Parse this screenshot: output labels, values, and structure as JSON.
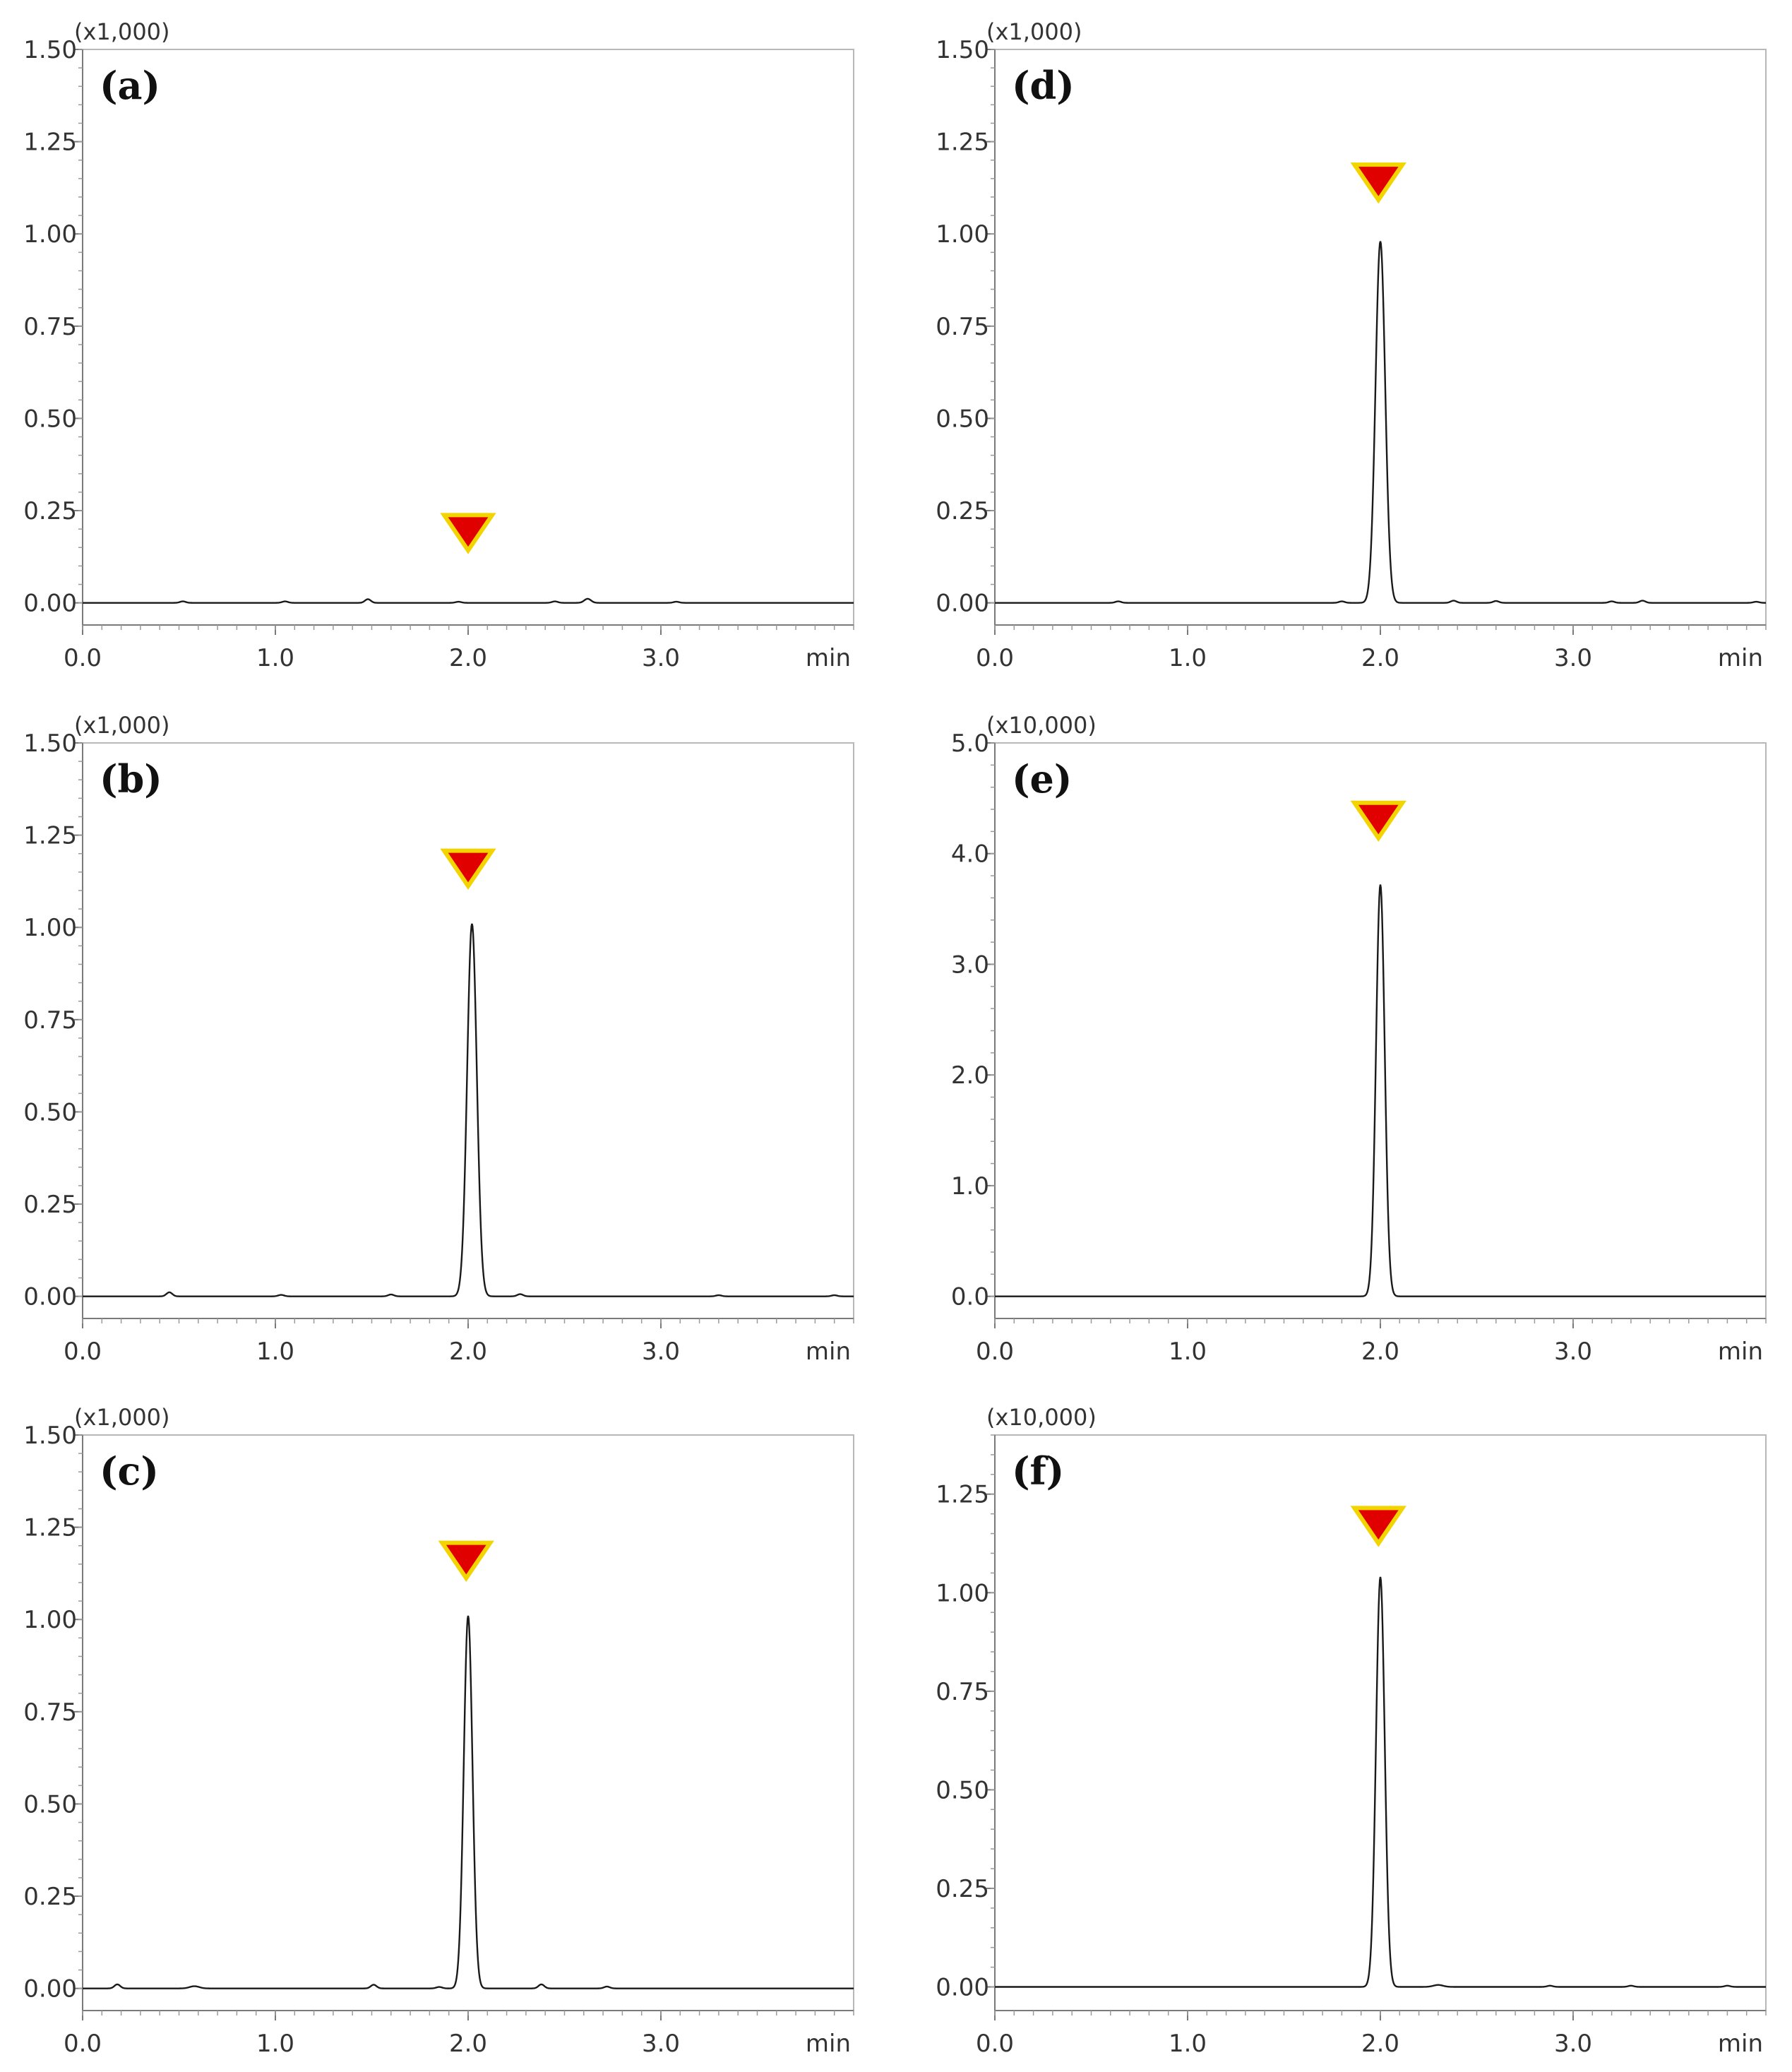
{
  "colors": {
    "trace": "#1a1a1a",
    "frame": "#b8b8b8",
    "marker_fill": "#e00000",
    "marker_border": "#f2d500"
  },
  "chart_data": [
    {
      "type": "line",
      "panel": "(a)",
      "multiplier": "(x1,000)",
      "xlabel": "min",
      "xlim": [
        0.0,
        4.0
      ],
      "xticks": [
        "0.0",
        "1.0",
        "2.0",
        "3.0"
      ],
      "ylim": [
        -0.06,
        1.5
      ],
      "yticks": [
        "0.00",
        "0.25",
        "0.50",
        "0.75",
        "1.00",
        "1.25",
        "1.50"
      ],
      "grid": false,
      "marker": {
        "x": 2.0,
        "y": 0.19
      },
      "series": [
        {
          "peaks": [
            [
              0.52,
              0.004,
              0.03
            ],
            [
              1.05,
              0.004,
              0.03
            ],
            [
              1.48,
              0.01,
              0.03
            ],
            [
              1.95,
              0.003,
              0.03
            ],
            [
              2.45,
              0.004,
              0.03
            ],
            [
              2.62,
              0.011,
              0.035
            ],
            [
              3.08,
              0.003,
              0.03
            ]
          ]
        }
      ]
    },
    {
      "type": "line",
      "panel": "(b)",
      "multiplier": "(x1,000)",
      "xlabel": "min",
      "xlim": [
        0.0,
        4.0
      ],
      "xticks": [
        "0.0",
        "1.0",
        "2.0",
        "3.0"
      ],
      "ylim": [
        -0.06,
        1.5
      ],
      "yticks": [
        "0.00",
        "0.25",
        "0.50",
        "0.75",
        "1.00",
        "1.25",
        "1.50"
      ],
      "grid": false,
      "marker": {
        "x": 2.0,
        "y": 1.16
      },
      "series": [
        {
          "peaks": [
            [
              0.45,
              0.011,
              0.03
            ],
            [
              1.03,
              0.004,
              0.03
            ],
            [
              1.6,
              0.005,
              0.03
            ],
            [
              2.02,
              1.01,
              0.05
            ],
            [
              2.27,
              0.006,
              0.03
            ],
            [
              3.3,
              0.003,
              0.03
            ],
            [
              3.9,
              0.003,
              0.03
            ]
          ]
        }
      ]
    },
    {
      "type": "line",
      "panel": "(c)",
      "multiplier": "(x1,000)",
      "xlabel": "min",
      "xlim": [
        0.0,
        4.0
      ],
      "xticks": [
        "0.0",
        "1.0",
        "2.0",
        "3.0"
      ],
      "ylim": [
        -0.06,
        1.5
      ],
      "yticks": [
        "0.00",
        "0.25",
        "0.50",
        "0.75",
        "1.00",
        "1.25",
        "1.50"
      ],
      "grid": false,
      "marker": {
        "x": 1.99,
        "y": 1.16
      },
      "series": [
        {
          "peaks": [
            [
              0.18,
              0.011,
              0.03
            ],
            [
              0.58,
              0.006,
              0.05
            ],
            [
              1.51,
              0.01,
              0.03
            ],
            [
              1.85,
              0.004,
              0.03
            ],
            [
              2.0,
              1.01,
              0.045
            ],
            [
              2.38,
              0.011,
              0.03
            ],
            [
              2.72,
              0.005,
              0.03
            ]
          ]
        }
      ]
    },
    {
      "type": "line",
      "panel": "(d)",
      "multiplier": "(x1,000)",
      "xlabel": "min",
      "xlim": [
        0.0,
        4.0
      ],
      "xticks": [
        "0.0",
        "1.0",
        "2.0",
        "3.0"
      ],
      "ylim": [
        -0.06,
        1.5
      ],
      "yticks": [
        "0.00",
        "0.25",
        "0.50",
        "0.75",
        "1.00",
        "1.25",
        "1.50"
      ],
      "grid": false,
      "marker": {
        "x": 1.99,
        "y": 1.14
      },
      "series": [
        {
          "peaks": [
            [
              0.64,
              0.004,
              0.03
            ],
            [
              1.8,
              0.004,
              0.03
            ],
            [
              2.0,
              0.98,
              0.05
            ],
            [
              2.38,
              0.006,
              0.03
            ],
            [
              2.6,
              0.005,
              0.03
            ],
            [
              3.2,
              0.004,
              0.03
            ],
            [
              3.36,
              0.006,
              0.03
            ],
            [
              3.95,
              0.003,
              0.03
            ]
          ]
        }
      ]
    },
    {
      "type": "line",
      "panel": "(e)",
      "multiplier": "(x10,000)",
      "xlabel": "min",
      "xlim": [
        0.0,
        4.0
      ],
      "xticks": [
        "0.0",
        "1.0",
        "2.0",
        "3.0"
      ],
      "ylim": [
        -0.2,
        5.0
      ],
      "yticks": [
        "0.0",
        "1.0",
        "2.0",
        "3.0",
        "4.0",
        "5.0"
      ],
      "grid": false,
      "marker": {
        "x": 1.99,
        "y": 4.3
      },
      "series": [
        {
          "peaks": [
            [
              2.0,
              3.72,
              0.045
            ]
          ]
        }
      ]
    },
    {
      "type": "line",
      "panel": "(f)",
      "multiplier": "(x10,000)",
      "xlabel": "min",
      "xlim": [
        0.0,
        4.0
      ],
      "xticks": [
        "0.0",
        "1.0",
        "2.0",
        "3.0"
      ],
      "ylim": [
        -0.06,
        1.4
      ],
      "yticks": [
        "0.00",
        "0.25",
        "0.50",
        "0.75",
        "1.00",
        "1.25"
      ],
      "grid": false,
      "marker": {
        "x": 1.99,
        "y": 1.17
      },
      "series": [
        {
          "peaks": [
            [
              2.0,
              1.04,
              0.045
            ],
            [
              2.3,
              0.005,
              0.05
            ],
            [
              2.88,
              0.003,
              0.03
            ],
            [
              3.3,
              0.003,
              0.03
            ],
            [
              3.8,
              0.003,
              0.03
            ]
          ]
        }
      ]
    }
  ]
}
